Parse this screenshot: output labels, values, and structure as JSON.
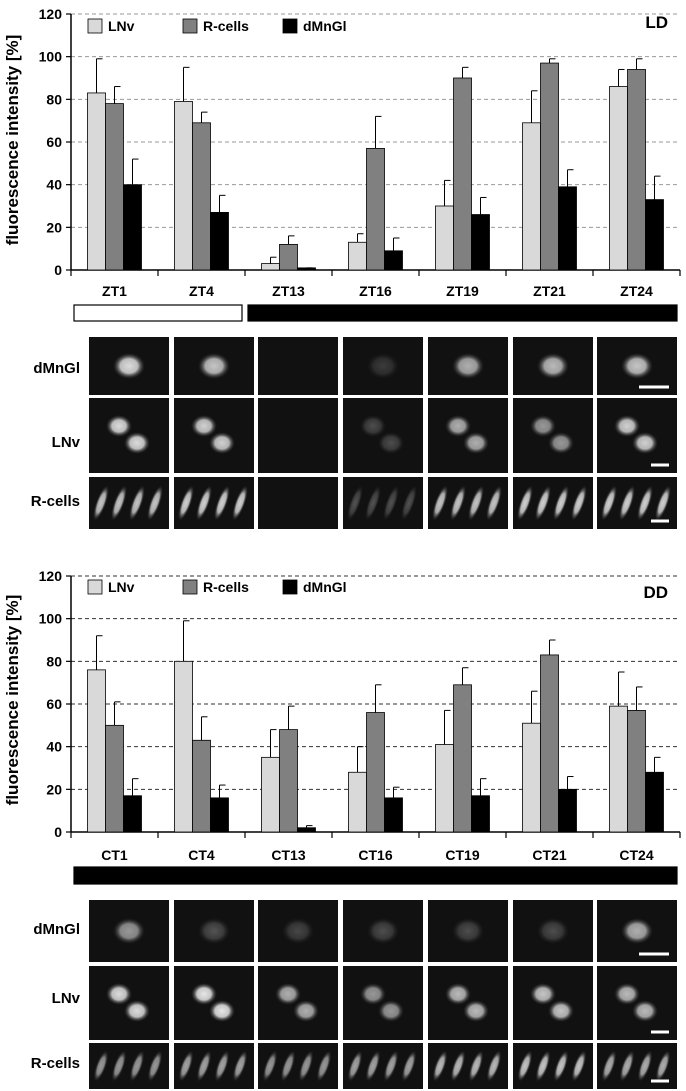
{
  "colors": {
    "LNv": "#d9d9d9",
    "R-cells": "#808080",
    "dMnGl": "#000000"
  },
  "chart_data": [
    {
      "type": "bar",
      "title": "LD",
      "xlabel": "",
      "ylabel": "fluorescence intensity [%]",
      "ylim": [
        0,
        120
      ],
      "yticks": [
        0,
        20,
        40,
        60,
        80,
        100,
        120
      ],
      "grid": true,
      "legend": "top-left",
      "categories": [
        "ZT1",
        "ZT4",
        "ZT13",
        "ZT16",
        "ZT19",
        "ZT21",
        "ZT24"
      ],
      "series": [
        {
          "name": "LNv",
          "values": [
            83,
            79,
            3,
            13,
            30,
            69,
            86
          ],
          "errors": [
            16,
            16,
            3,
            4,
            12,
            15,
            8
          ]
        },
        {
          "name": "R-cells",
          "values": [
            78,
            69,
            12,
            57,
            90,
            97,
            94
          ],
          "errors": [
            8,
            5,
            4,
            15,
            5,
            2,
            5
          ]
        },
        {
          "name": "dMnGl",
          "values": [
            40,
            27,
            1,
            9,
            26,
            39,
            33
          ],
          "errors": [
            12,
            8,
            0,
            6,
            8,
            8,
            11
          ]
        }
      ],
      "light_bar": [
        "white",
        "white",
        "black",
        "black",
        "black",
        "black",
        "black"
      ]
    },
    {
      "type": "bar",
      "title": "DD",
      "xlabel": "",
      "ylabel": "fluorescence intensity [%]",
      "ylim": [
        0,
        120
      ],
      "yticks": [
        0,
        20,
        40,
        60,
        80,
        100,
        120
      ],
      "grid": true,
      "legend": "top-left",
      "categories": [
        "CT1",
        "CT4",
        "CT13",
        "CT16",
        "CT19",
        "CT21",
        "CT24"
      ],
      "series": [
        {
          "name": "LNv",
          "values": [
            76,
            80,
            35,
            28,
            41,
            51,
            59
          ],
          "errors": [
            16,
            19,
            13,
            12,
            16,
            15,
            16
          ]
        },
        {
          "name": "R-cells",
          "values": [
            50,
            43,
            48,
            56,
            69,
            83,
            57
          ],
          "errors": [
            11,
            11,
            11,
            13,
            8,
            7,
            11
          ]
        },
        {
          "name": "dMnGl",
          "values": [
            17,
            16,
            2,
            16,
            17,
            20,
            28
          ],
          "errors": [
            8,
            6,
            1,
            5,
            8,
            6,
            7
          ]
        }
      ],
      "light_bar": [
        "black",
        "black",
        "black",
        "black",
        "black",
        "black",
        "black"
      ]
    }
  ],
  "image_rows": {
    "labels": [
      "dMnGl",
      "LNv",
      "R-cells"
    ]
  }
}
